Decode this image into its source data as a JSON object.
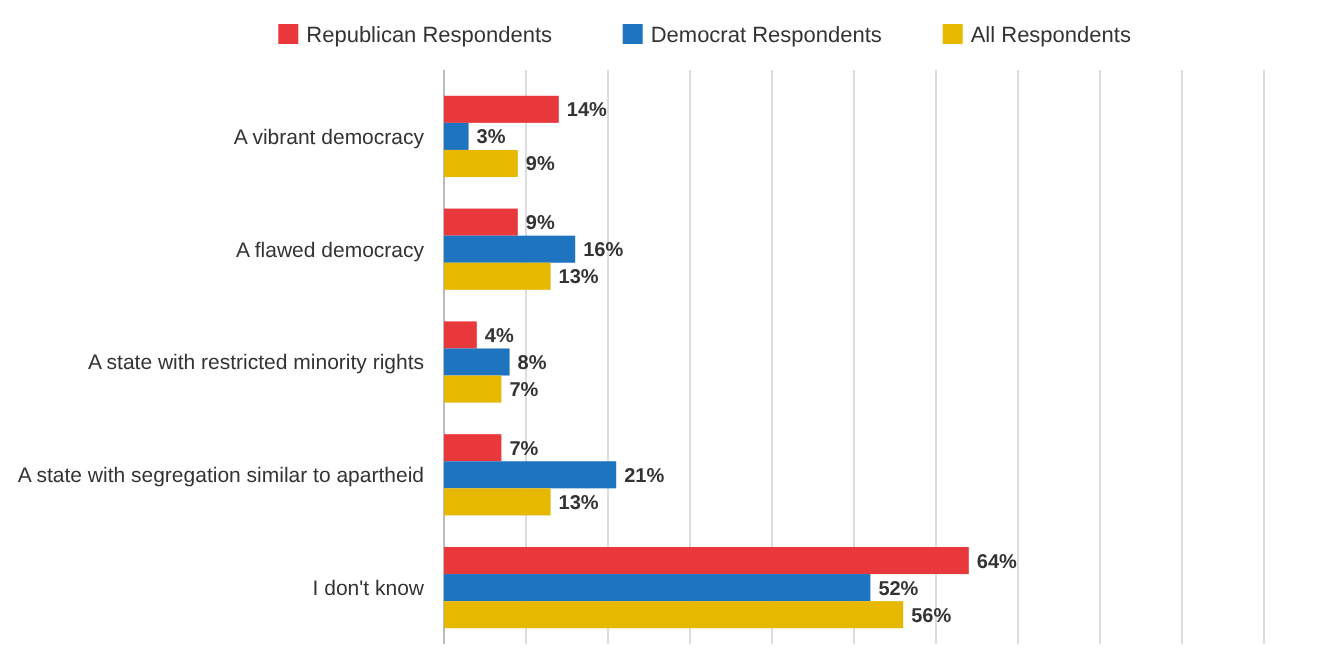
{
  "chart_data": {
    "type": "bar",
    "orientation": "horizontal",
    "categories": [
      "A vibrant democracy",
      "A flawed democracy",
      "A state with restricted minority rights",
      "A state with segregation similar to apartheid",
      "I don't know"
    ],
    "series": [
      {
        "name": "Republican Respondents",
        "color": "#e8383b",
        "values": [
          14,
          9,
          4,
          7,
          64
        ],
        "value_labels": [
          "14%",
          "9%",
          "4%",
          "7%",
          "64%"
        ]
      },
      {
        "name": "Democrat Respondents",
        "color": "#1f74c0",
        "values": [
          3,
          16,
          8,
          21,
          52
        ],
        "value_labels": [
          "3%",
          "16%",
          "8%",
          "21%",
          "52%"
        ]
      },
      {
        "name": "All Respondents",
        "color": "#e6b800",
        "values": [
          9,
          13,
          7,
          13,
          56
        ],
        "value_labels": [
          "9%",
          "13%",
          "7%",
          "13%",
          "56%"
        ]
      }
    ],
    "xlim": [
      0,
      100
    ],
    "xticks": [
      {
        "value": 0,
        "label": null
      },
      {
        "value": 10,
        "label": null
      },
      {
        "value": 20,
        "label": null
      },
      {
        "value": 30,
        "label": null
      },
      {
        "value": 40,
        "label": null
      },
      {
        "value": 50,
        "label": null
      },
      {
        "value": 60,
        "label": null
      },
      {
        "value": 70,
        "label": null
      },
      {
        "value": 80,
        "label": null
      },
      {
        "value": 90,
        "label": null
      },
      {
        "value": 100,
        "label": null
      }
    ],
    "grid": "x",
    "legend": "top",
    "tick_labels": "y"
  }
}
